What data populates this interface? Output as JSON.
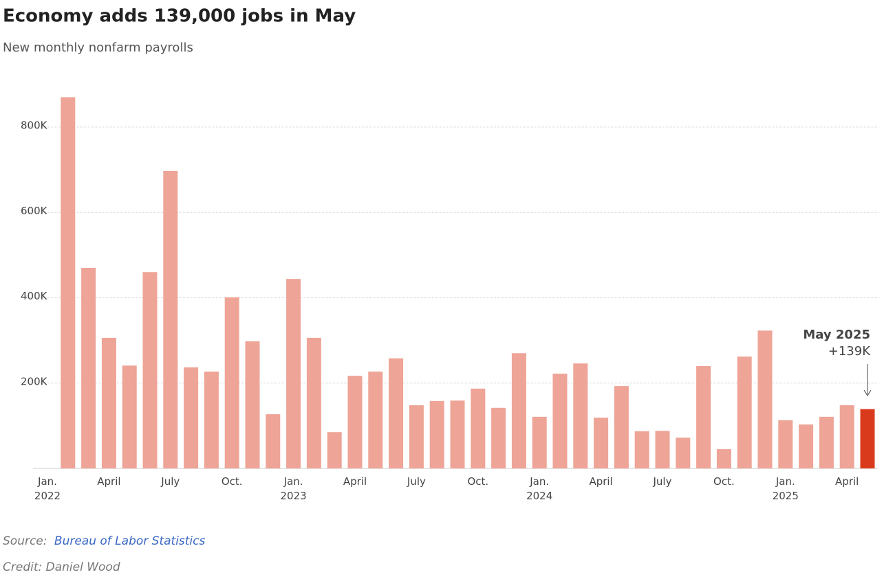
{
  "chart_data": {
    "type": "bar",
    "title": "Economy adds 139,000 jobs in May",
    "subtitle": "New monthly nonfarm payrolls",
    "categories": [
      "Jan. 2022",
      null,
      null,
      "April",
      null,
      null,
      "July",
      null,
      null,
      "Oct.",
      null,
      null,
      "Jan. 2023",
      null,
      null,
      "April",
      null,
      null,
      "July",
      null,
      null,
      "Oct.",
      null,
      null,
      "Jan. 2024",
      null,
      null,
      "April",
      null,
      null,
      "July",
      null,
      null,
      "Oct.",
      null,
      null,
      "Jan. 2025",
      null,
      null,
      "April",
      null
    ],
    "values": [
      null,
      870,
      470,
      306,
      241,
      460,
      697,
      237,
      227,
      401,
      298,
      127,
      444,
      306,
      85,
      217,
      227,
      258,
      148,
      158,
      159,
      187,
      142,
      270,
      121,
      222,
      246,
      119,
      193,
      87,
      88,
      72,
      240,
      45,
      262,
      323,
      113,
      103,
      121,
      148,
      139
    ],
    "color": "#eea497",
    "highlight_color": "#d93a1c",
    "ylim": [
      0,
      900
    ],
    "yticks": [
      {
        "value": 200,
        "label": "200K"
      },
      {
        "value": 400,
        "label": "400K"
      },
      {
        "value": 600,
        "label": "600K"
      },
      {
        "value": 800,
        "label": "800K"
      }
    ],
    "grid": true,
    "annotation": {
      "title": "May 2025",
      "text": "+139K"
    },
    "source_prefix": "Source:",
    "source": "Bureau of Labor Statistics",
    "credit": "Credit: Daniel Wood"
  }
}
